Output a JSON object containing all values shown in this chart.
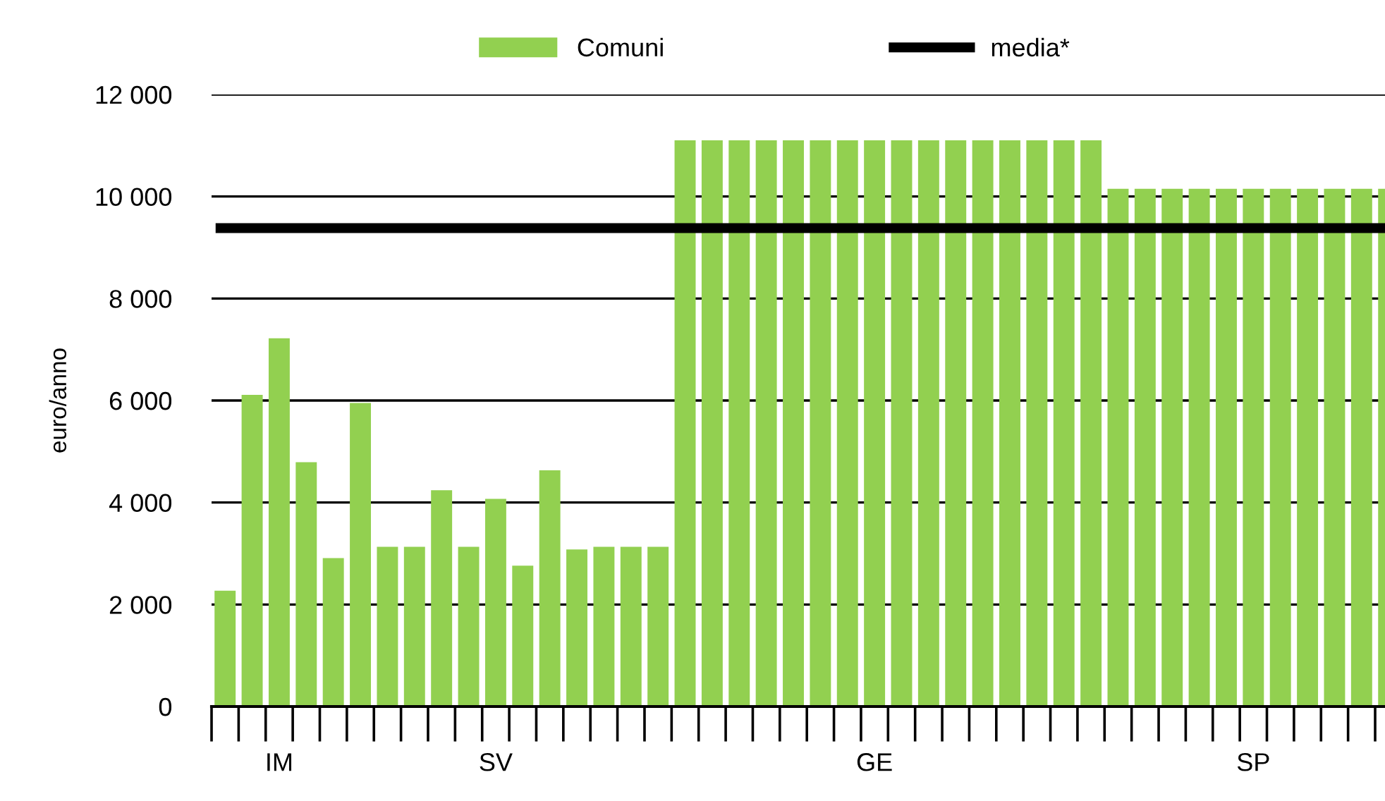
{
  "chart_data": {
    "type": "bar",
    "ylabel": "euro/anno",
    "categories": [
      null,
      null,
      "IM",
      null,
      null,
      null,
      null,
      null,
      null,
      null,
      "SV",
      null,
      null,
      null,
      null,
      null,
      null,
      null,
      null,
      null,
      null,
      null,
      null,
      null,
      "GE",
      null,
      null,
      null,
      null,
      null,
      null,
      null,
      null,
      null,
      null,
      null,
      null,
      null,
      "SP",
      null,
      null,
      null,
      null,
      null
    ],
    "series": [
      {
        "name": "Comuni",
        "color": "#92d050",
        "values": [
          2270,
          6110,
          7220,
          4790,
          2910,
          5950,
          3130,
          3130,
          4240,
          3130,
          4070,
          2760,
          4630,
          3080,
          3130,
          3130,
          3130,
          11100,
          11100,
          11100,
          11100,
          11100,
          11100,
          11100,
          11100,
          11100,
          11100,
          11100,
          11100,
          11100,
          11100,
          11100,
          11100,
          10150,
          10150,
          10150,
          10150,
          10150,
          10150,
          10150,
          10150,
          10150,
          10150,
          10150
        ]
      }
    ],
    "ref_lines": [
      {
        "axis": "y",
        "value": 9380,
        "label": "media*",
        "color": "#000000"
      }
    ],
    "ylim": [
      0,
      12000
    ],
    "yticks": [
      0,
      {
        "value": 2000,
        "label": "2 000"
      },
      {
        "value": 4000,
        "label": "4 000"
      },
      {
        "value": 6000,
        "label": "6 000"
      },
      {
        "value": 8000,
        "label": "8 000"
      },
      {
        "value": 10000,
        "label": "10 000"
      },
      {
        "value": 12000,
        "label": "12 000"
      }
    ],
    "grid": "y",
    "legend": "top"
  }
}
